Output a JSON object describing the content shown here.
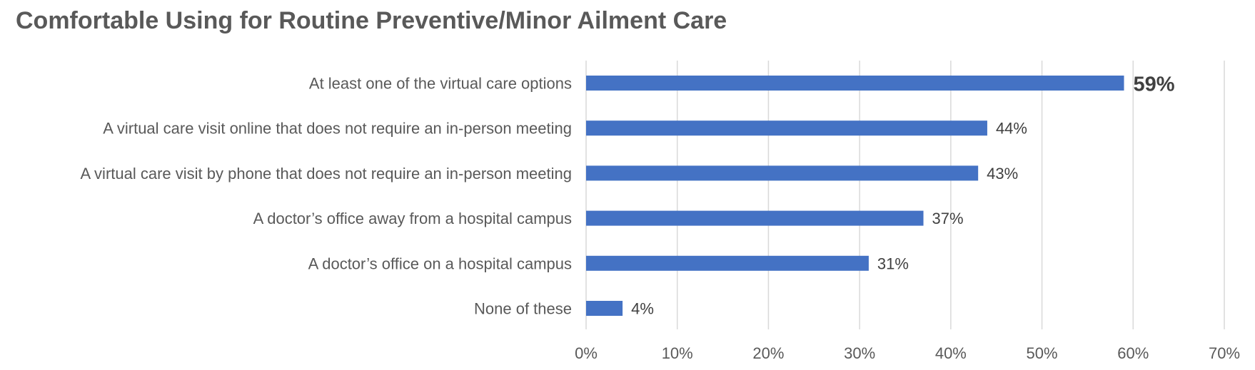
{
  "chart_data": {
    "type": "bar",
    "orientation": "horizontal",
    "title": "Comfortable Using for Routine Preventive/Minor Ailment Care",
    "categories": [
      "At least one of the virtual care options",
      "A virtual care visit online that does not require an in-person meeting",
      "A virtual care visit by phone that does not require an in-person meeting",
      "A doctor’s office away from a hospital campus",
      "A doctor’s office on a hospital campus",
      "None of these"
    ],
    "values": [
      59,
      44,
      43,
      37,
      31,
      4
    ],
    "data_labels": [
      "59%",
      "44%",
      "43%",
      "37%",
      "31%",
      "4%"
    ],
    "emphasized_index": 0,
    "xlim": [
      0,
      70
    ],
    "x_ticks": [
      0,
      10,
      20,
      30,
      40,
      50,
      60,
      70
    ],
    "x_tick_labels": [
      "0%",
      "10%",
      "20%",
      "30%",
      "40%",
      "50%",
      "60%",
      "70%"
    ],
    "xlabel": "",
    "ylabel": "",
    "grid": "vertical",
    "legend": "none",
    "colors": {
      "bar": "#4472C4",
      "gridline": "#D9D9D9",
      "text": "#595959",
      "data_label": "#404040"
    }
  }
}
